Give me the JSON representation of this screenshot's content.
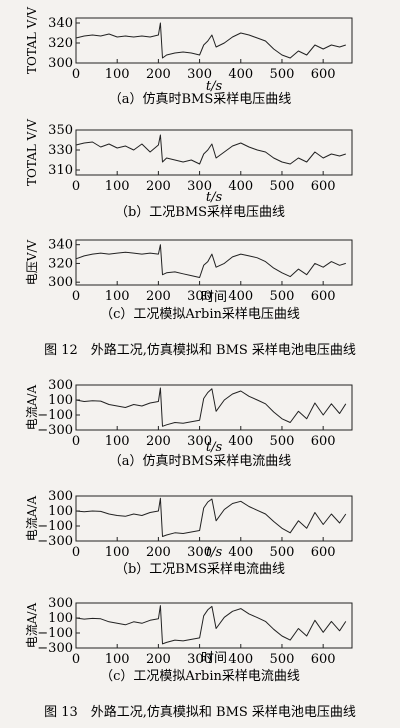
{
  "figure12_caption": "图 12　外路工况,仿真模拟和 BMS 采样电池电压曲线",
  "figure13_caption": "图 13　外路工况,仿真模拟和 BMS 采样电池电压曲线",
  "chart_data": [
    {
      "type": "line",
      "caption": "（a）仿真时BMS采样电压曲线",
      "ylabel": "TOTAL V/V",
      "xlabel": "t/s",
      "ylim": [
        300,
        345
      ],
      "xlim": [
        0,
        670
      ],
      "yticks": [
        "300",
        "320",
        "340"
      ],
      "yticksv": [
        300,
        320,
        340
      ],
      "xticks": [
        "0",
        "100",
        "200",
        "300",
        "400",
        "500",
        "600"
      ],
      "series": [
        {
          "x": [
            0,
            20,
            40,
            60,
            80,
            100,
            120,
            140,
            160,
            180,
            200,
            205,
            210,
            220,
            240,
            260,
            280,
            300,
            310,
            320,
            330,
            340,
            360,
            380,
            400,
            420,
            440,
            460,
            480,
            500,
            520,
            540,
            560,
            580,
            600,
            620,
            640,
            655
          ],
          "y": [
            325,
            327,
            328,
            327,
            329,
            326,
            327,
            326,
            327,
            326,
            328,
            340,
            305,
            308,
            310,
            311,
            310,
            308,
            318,
            322,
            328,
            316,
            320,
            326,
            330,
            328,
            325,
            322,
            314,
            308,
            305,
            312,
            308,
            318,
            314,
            318,
            316,
            318
          ]
        }
      ]
    },
    {
      "type": "line",
      "caption": "（b）工况BMS采样电压曲线",
      "ylabel": "TOTAL V/V",
      "xlabel": "t/s",
      "ylim": [
        305,
        350
      ],
      "xlim": [
        0,
        670
      ],
      "yticks": [
        "310",
        "330",
        "350"
      ],
      "yticksv": [
        310,
        330,
        350
      ],
      "xticks": [
        "0",
        "100",
        "200",
        "300",
        "400",
        "500",
        "600"
      ],
      "series": [
        {
          "x": [
            0,
            20,
            40,
            60,
            80,
            100,
            120,
            140,
            160,
            180,
            200,
            205,
            210,
            220,
            240,
            260,
            280,
            300,
            310,
            320,
            330,
            340,
            360,
            380,
            400,
            420,
            440,
            460,
            480,
            500,
            520,
            540,
            560,
            580,
            600,
            620,
            640,
            655
          ],
          "y": [
            335,
            337,
            338,
            333,
            336,
            332,
            334,
            330,
            336,
            328,
            335,
            345,
            318,
            322,
            320,
            318,
            320,
            316,
            326,
            330,
            336,
            322,
            328,
            334,
            337,
            333,
            330,
            328,
            322,
            318,
            316,
            322,
            318,
            328,
            322,
            326,
            324,
            326
          ]
        }
      ]
    },
    {
      "type": "line",
      "caption": "（c）工况模拟Arbin采样电压曲线",
      "ylabel": "电压V/V",
      "xlabel": "时间",
      "ylim": [
        297,
        345
      ],
      "xlim": [
        0,
        670
      ],
      "yticks": [
        "300",
        "320",
        "340"
      ],
      "yticksv": [
        300,
        320,
        340
      ],
      "xticks": [
        "0",
        "100",
        "200",
        "300",
        "400",
        "500",
        "600"
      ],
      "series": [
        {
          "x": [
            0,
            20,
            40,
            60,
            80,
            100,
            120,
            140,
            160,
            180,
            200,
            205,
            210,
            220,
            240,
            260,
            280,
            300,
            310,
            320,
            330,
            340,
            360,
            380,
            400,
            420,
            440,
            460,
            480,
            500,
            520,
            540,
            560,
            580,
            600,
            620,
            640,
            655
          ],
          "y": [
            325,
            328,
            330,
            331,
            330,
            331,
            332,
            331,
            330,
            331,
            330,
            340,
            308,
            310,
            311,
            309,
            307,
            305,
            318,
            322,
            330,
            316,
            320,
            327,
            330,
            328,
            326,
            322,
            315,
            310,
            306,
            314,
            308,
            320,
            316,
            322,
            318,
            320
          ]
        }
      ]
    },
    {
      "type": "line",
      "caption": "（a）仿真时BMS采样电流曲线",
      "ylabel": "电流A/A",
      "xlabel": "t/s",
      "ylim": [
        -300,
        300
      ],
      "xlim": [
        0,
        670
      ],
      "yticks": [
        "300",
        "100",
        "−100",
        "−300"
      ],
      "yticksv": [
        300,
        100,
        -100,
        -300
      ],
      "xticks": [
        "0",
        "100",
        "200",
        "300",
        "400",
        "500",
        "600"
      ],
      "series": [
        {
          "x": [
            0,
            20,
            40,
            60,
            80,
            100,
            120,
            140,
            160,
            180,
            200,
            205,
            210,
            220,
            240,
            260,
            280,
            300,
            310,
            320,
            330,
            340,
            360,
            380,
            400,
            420,
            440,
            460,
            480,
            500,
            520,
            540,
            560,
            580,
            600,
            620,
            640,
            655
          ],
          "y": [
            100,
            80,
            90,
            85,
            40,
            20,
            0,
            40,
            20,
            60,
            80,
            260,
            -250,
            -230,
            -200,
            -210,
            -190,
            -170,
            120,
            200,
            250,
            -50,
            100,
            180,
            220,
            150,
            100,
            50,
            -60,
            -150,
            -200,
            -50,
            -150,
            60,
            -100,
            50,
            -80,
            50
          ]
        }
      ]
    },
    {
      "type": "line",
      "caption": "（b）工况BMS采样电流曲线",
      "ylabel": "电流A/A",
      "xlabel": "t/s",
      "ylim": [
        -300,
        300
      ],
      "xlim": [
        0,
        670
      ],
      "yticks": [
        "300",
        "100",
        "−100",
        "−300"
      ],
      "yticksv": [
        300,
        100,
        -100,
        -300
      ],
      "xticks": [
        "0",
        "100",
        "200",
        "300",
        "400",
        "500",
        "600"
      ],
      "series": [
        {
          "x": [
            0,
            20,
            40,
            60,
            80,
            100,
            120,
            140,
            160,
            180,
            200,
            205,
            210,
            220,
            240,
            260,
            280,
            300,
            310,
            320,
            330,
            340,
            360,
            380,
            400,
            420,
            440,
            460,
            480,
            500,
            520,
            540,
            560,
            580,
            600,
            620,
            640,
            655
          ],
          "y": [
            100,
            90,
            100,
            95,
            60,
            40,
            30,
            60,
            40,
            80,
            100,
            270,
            -240,
            -220,
            -190,
            -200,
            -180,
            -160,
            140,
            220,
            260,
            -30,
            120,
            200,
            230,
            160,
            110,
            60,
            -40,
            -130,
            -190,
            -30,
            -130,
            80,
            -80,
            60,
            -60,
            60
          ]
        }
      ]
    },
    {
      "type": "line",
      "caption": "（c）工况模拟Arbin采样电流曲线",
      "ylabel": "电流A/A",
      "xlabel": "时间",
      "ylim": [
        -300,
        300
      ],
      "xlim": [
        0,
        670
      ],
      "yticks": [
        "300",
        "100",
        "−100",
        "−300"
      ],
      "yticksv": [
        300,
        100,
        -100,
        -300
      ],
      "xticks": [
        "0",
        "100",
        "200",
        "300",
        "400",
        "500",
        "600"
      ],
      "series": [
        {
          "x": [
            0,
            20,
            40,
            60,
            80,
            100,
            120,
            140,
            160,
            180,
            200,
            205,
            210,
            220,
            240,
            260,
            280,
            300,
            310,
            320,
            330,
            340,
            360,
            380,
            400,
            420,
            440,
            460,
            480,
            500,
            520,
            540,
            560,
            580,
            600,
            620,
            640,
            655
          ],
          "y": [
            100,
            85,
            95,
            90,
            50,
            30,
            10,
            50,
            30,
            70,
            90,
            265,
            -245,
            -225,
            -195,
            -205,
            -185,
            -165,
            130,
            210,
            255,
            -40,
            110,
            190,
            225,
            155,
            105,
            55,
            -50,
            -140,
            -195,
            -40,
            -140,
            70,
            -90,
            55,
            -70,
            55
          ]
        }
      ]
    }
  ]
}
